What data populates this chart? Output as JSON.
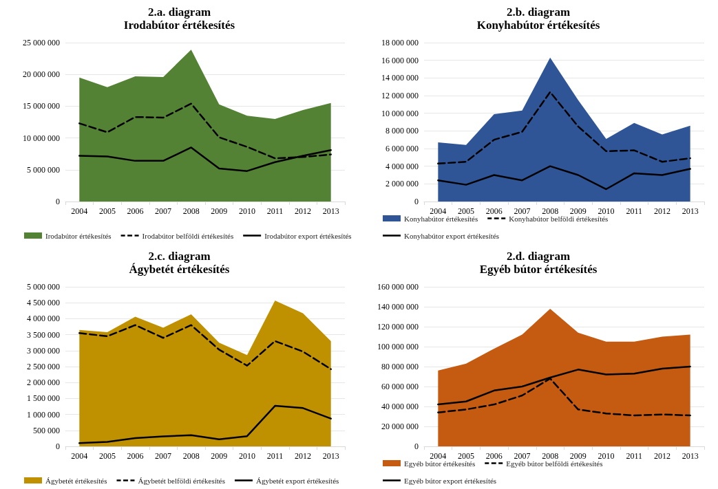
{
  "chart_data": [
    {
      "type": "area",
      "title": "2.a. diagram",
      "subtitle": "Irodabútor értékesítés",
      "categories": [
        "2004",
        "2005",
        "2006",
        "2007",
        "2008",
        "2009",
        "2010",
        "2011",
        "2012",
        "2013"
      ],
      "series": [
        {
          "name": "Irodabútor értékesítés",
          "color": "#548235",
          "values": [
            19500000,
            18000000,
            19700000,
            19600000,
            23900000,
            15300000,
            13500000,
            13000000,
            14400000,
            15500000
          ]
        },
        {
          "name": "Irodabútor belföldi értékesítés",
          "type": "line",
          "color": "#000000",
          "line_style": "dashed",
          "values": [
            12300000,
            10900000,
            13300000,
            13200000,
            15400000,
            10100000,
            8600000,
            6800000,
            7000000,
            7400000
          ]
        },
        {
          "name": "Irodabútor export értékesítés",
          "type": "line",
          "color": "#000000",
          "line_style": "solid",
          "values": [
            7200000,
            7100000,
            6400000,
            6400000,
            8500000,
            5200000,
            4800000,
            6200000,
            7200000,
            8100000
          ]
        }
      ],
      "ylim": [
        0,
        25000000
      ],
      "yticks": [
        {
          "value": 0,
          "label": "0"
        },
        {
          "value": 5000000,
          "label": "5 000 000"
        },
        {
          "value": 10000000,
          "label": "10 000 000"
        },
        {
          "value": 15000000,
          "label": "15 000 000"
        },
        {
          "value": 20000000,
          "label": "20 000 000"
        },
        {
          "value": 25000000,
          "label": "25 000 000"
        }
      ],
      "grid": "y",
      "legend": "bottom",
      "marker": "none"
    },
    {
      "type": "area",
      "title": "2.b. diagram",
      "subtitle": "Konyhabútor értékesítés",
      "categories": [
        "2004",
        "2005",
        "2006",
        "2007",
        "2008",
        "2009",
        "2010",
        "2011",
        "2012",
        "2013"
      ],
      "series": [
        {
          "name": "Konyhabútor értékesítés",
          "color": "#2f5597",
          "values": [
            6700000,
            6400000,
            9900000,
            10300000,
            16300000,
            11500000,
            7100000,
            8900000,
            7600000,
            8600000
          ]
        },
        {
          "name": "Konyhabútor belföldi értékesítés",
          "type": "line",
          "color": "#000000",
          "line_style": "dashed",
          "values": [
            4300000,
            4500000,
            7000000,
            7900000,
            12400000,
            8500000,
            5700000,
            5800000,
            4500000,
            4900000
          ]
        },
        {
          "name": "Konyhabútor export értékesítés",
          "type": "line",
          "color": "#000000",
          "line_style": "solid",
          "values": [
            2400000,
            1900000,
            3000000,
            2400000,
            4000000,
            3000000,
            1400000,
            3200000,
            3000000,
            3700000
          ]
        }
      ],
      "ylim": [
        0,
        18000000
      ],
      "yticks": [
        {
          "value": 0,
          "label": "0"
        },
        {
          "value": 2000000,
          "label": "2 000 000"
        },
        {
          "value": 4000000,
          "label": "4 000 000"
        },
        {
          "value": 6000000,
          "label": "6 000 000"
        },
        {
          "value": 8000000,
          "label": "8 000 000"
        },
        {
          "value": 10000000,
          "label": "10 000 000"
        },
        {
          "value": 12000000,
          "label": "12 000 000"
        },
        {
          "value": 14000000,
          "label": "14 000 000"
        },
        {
          "value": 16000000,
          "label": "16 000 000"
        },
        {
          "value": 18000000,
          "label": "18 000 000"
        }
      ],
      "grid": "y",
      "legend": "bottom",
      "marker": "none"
    },
    {
      "type": "area",
      "title": "2.c. diagram",
      "subtitle": "Ágybetét értékesítés",
      "categories": [
        "2004",
        "2005",
        "2006",
        "2007",
        "2008",
        "2009",
        "2010",
        "2011",
        "2012",
        "2013"
      ],
      "series": [
        {
          "name": "Ágybetét értékesítés",
          "color": "#bf9000",
          "values": [
            3650000,
            3580000,
            4060000,
            3720000,
            4140000,
            3250000,
            2860000,
            4570000,
            4170000,
            3300000
          ]
        },
        {
          "name": "Ágybetét belföldi értékesítés",
          "type": "line",
          "color": "#000000",
          "line_style": "dashed",
          "values": [
            3550000,
            3450000,
            3800000,
            3400000,
            3800000,
            3030000,
            2530000,
            3300000,
            2970000,
            2420000
          ]
        },
        {
          "name": "Ágybetét export értékesítés",
          "type": "line",
          "color": "#000000",
          "line_style": "solid",
          "values": [
            100000,
            140000,
            260000,
            310000,
            350000,
            220000,
            320000,
            1270000,
            1200000,
            870000
          ]
        }
      ],
      "ylim": [
        0,
        5000000
      ],
      "yticks": [
        {
          "value": 0,
          "label": "0"
        },
        {
          "value": 500000,
          "label": "500 000"
        },
        {
          "value": 1000000,
          "label": "1 000 000"
        },
        {
          "value": 1500000,
          "label": "1 500 000"
        },
        {
          "value": 2000000,
          "label": "2 000 000"
        },
        {
          "value": 2500000,
          "label": "2 500 000"
        },
        {
          "value": 3000000,
          "label": "3 000 000"
        },
        {
          "value": 3500000,
          "label": "3 500 000"
        },
        {
          "value": 4000000,
          "label": "4 000 000"
        },
        {
          "value": 4500000,
          "label": "4 500 000"
        },
        {
          "value": 5000000,
          "label": "5 000 000"
        }
      ],
      "grid": "y",
      "legend": "bottom",
      "marker": "none"
    },
    {
      "type": "area",
      "title": "2.d. diagram",
      "subtitle": "Egyéb bútor értékesítés",
      "categories": [
        "2004",
        "2005",
        "2006",
        "2007",
        "2008",
        "2009",
        "2010",
        "2011",
        "2012",
        "2013"
      ],
      "series": [
        {
          "name": "Egyéb bútor értékesítés",
          "color": "#c55a11",
          "values": [
            76000000,
            83000000,
            98000000,
            112000000,
            138000000,
            114000000,
            105000000,
            105000000,
            110000000,
            112000000
          ]
        },
        {
          "name": "Egyéb bútor belföldi értékesítés",
          "type": "line",
          "color": "#000000",
          "line_style": "dashed",
          "values": [
            34000000,
            37000000,
            42000000,
            51000000,
            68000000,
            37000000,
            33000000,
            31000000,
            32000000,
            31000000
          ]
        },
        {
          "name": "Egyéb bútor export értékesítés",
          "type": "line",
          "color": "#000000",
          "line_style": "solid",
          "values": [
            42000000,
            45000000,
            56000000,
            60000000,
            69000000,
            77000000,
            72000000,
            73000000,
            78000000,
            80000000
          ]
        }
      ],
      "ylim": [
        0,
        160000000
      ],
      "yticks": [
        {
          "value": 0,
          "label": "0"
        },
        {
          "value": 20000000,
          "label": "20 000 000"
        },
        {
          "value": 40000000,
          "label": "40 000 000"
        },
        {
          "value": 60000000,
          "label": "60 000 000"
        },
        {
          "value": 80000000,
          "label": "80 000 000"
        },
        {
          "value": 100000000,
          "label": "100 000 000"
        },
        {
          "value": 120000000,
          "label": "120 000 000"
        },
        {
          "value": 140000000,
          "label": "140 000 000"
        },
        {
          "value": 160000000,
          "label": "160 000 000"
        }
      ],
      "grid": "y",
      "legend": "bottom",
      "marker": "none"
    }
  ]
}
